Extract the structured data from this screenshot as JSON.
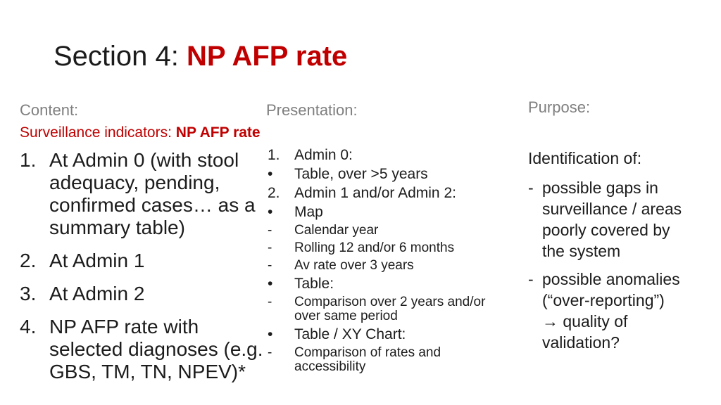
{
  "slide": {
    "title": {
      "prefix": "Section 4: ",
      "highlight": "NP AFP rate"
    },
    "content": {
      "header": "Content:",
      "subtitle_prefix": "Surveillance indicators: ",
      "subtitle_highlight": "NP AFP rate",
      "items": [
        {
          "marker": "1.",
          "text": "At Admin 0 (with stool\nadequacy, pending,\nconfirmed cases… as a\nsummary table)"
        },
        {
          "marker": "2.",
          "text": "At Admin 1"
        },
        {
          "marker": "3.",
          "text": "At Admin 2"
        },
        {
          "marker": "4.",
          "text": "NP AFP rate with\nselected diagnoses (e.g.\nGBS, TM, TN, NPEV)*"
        }
      ]
    },
    "presentation": {
      "header": "Presentation:",
      "items": [
        {
          "marker": "1.",
          "text": "Admin 0:"
        },
        {
          "marker": "•",
          "text": "Table, over >5 years"
        },
        {
          "marker": "2.",
          "text": "Admin 1 and/or Admin 2:"
        },
        {
          "marker": "•",
          "text": "Map"
        },
        {
          "marker": "-",
          "text": "Calendar year"
        },
        {
          "marker": "-",
          "text": "Rolling 12 and/or 6 months"
        },
        {
          "marker": "-",
          "text": "Av rate over 3 years"
        },
        {
          "marker": "•",
          "text": "Table:"
        },
        {
          "marker": "-",
          "text": "Comparison over 2 years and/or\nover same period"
        },
        {
          "marker": "•",
          "text": "Table / XY Chart:"
        },
        {
          "marker": "-",
          "text": "Comparison of rates and\naccessibility"
        }
      ]
    },
    "purpose": {
      "header": "Purpose:",
      "lead": "Identification of:",
      "items": [
        {
          "marker": "-",
          "text": "possible gaps in\nsurveillance / areas\npoorly covered by\nthe system"
        },
        {
          "marker": "-",
          "text": "possible anomalies\n(“over-reporting”)\n→ quality of\nvalidation?"
        }
      ]
    },
    "colors": {
      "accent_red": "#C00000",
      "header_gray": "#7F7F7F",
      "body_black": "#1C1C1C"
    }
  }
}
